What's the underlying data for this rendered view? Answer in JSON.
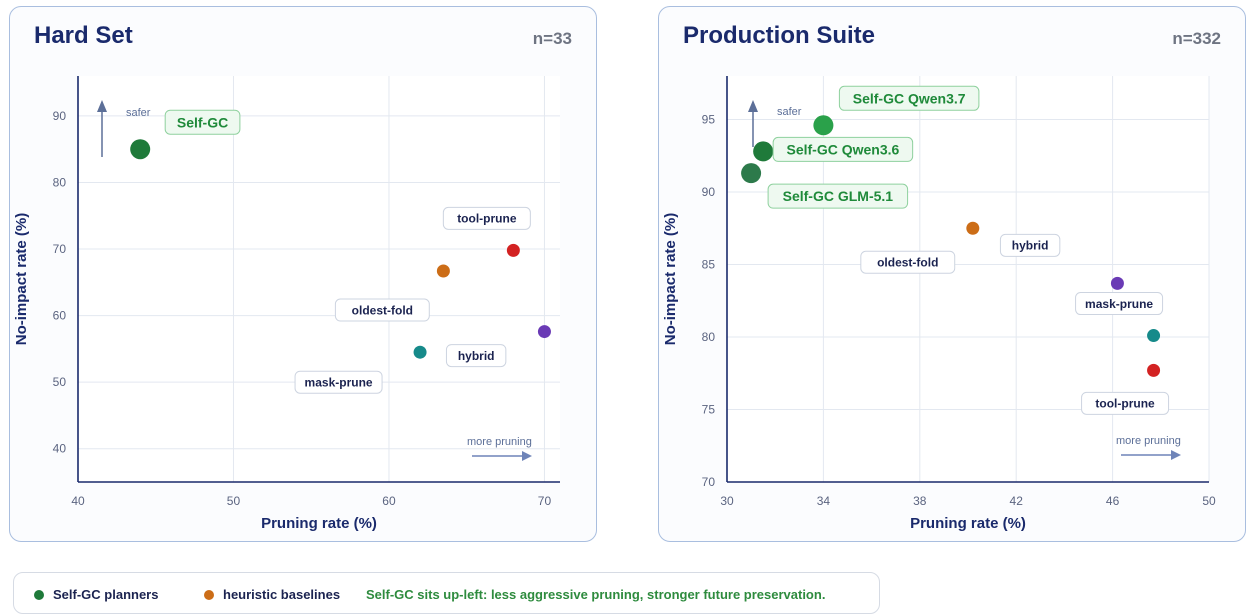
{
  "panels": [
    {
      "title": "Hard Set",
      "n_label": "n=33"
    },
    {
      "title": "Production Suite",
      "n_label": "n=332"
    }
  ],
  "legend": {
    "items": [
      {
        "label": "Self-GC planners",
        "color": "#1f7a3a"
      },
      {
        "label": "heuristic baselines",
        "color": "#cc6d17"
      }
    ],
    "note": "Self-GC sits up-left: less aggressive pruning, stronger future preservation."
  },
  "chart_data": [
    {
      "type": "scatter",
      "title": "Hard Set",
      "xlabel": "Pruning rate (%)",
      "ylabel": "No-impact rate (%)",
      "xlim": [
        40,
        71
      ],
      "ylim": [
        35,
        96
      ],
      "xticks": [
        40,
        50,
        60,
        70
      ],
      "yticks": [
        40,
        50,
        60,
        70,
        80,
        90
      ],
      "grid": true,
      "annotations": {
        "up": "safer",
        "right": "more pruning"
      },
      "points": [
        {
          "label": "Self-GC",
          "x": 44.0,
          "y": 85.0,
          "color": "#1f7a3a",
          "group": "Self-GC planners"
        },
        {
          "label": "tool-prune",
          "x": 68.0,
          "y": 69.8,
          "color": "#d32222",
          "group": "heuristic baselines"
        },
        {
          "label": "oldest-fold",
          "x": 63.5,
          "y": 66.7,
          "color": "#cc6d17",
          "group": "heuristic baselines"
        },
        {
          "label": "hybrid",
          "x": 70.0,
          "y": 57.6,
          "color": "#6a3ab5",
          "group": "heuristic baselines"
        },
        {
          "label": "mask-prune",
          "x": 62.0,
          "y": 54.5,
          "color": "#168a8a",
          "group": "heuristic baselines"
        }
      ]
    },
    {
      "type": "scatter",
      "title": "Production Suite",
      "xlabel": "Pruning rate (%)",
      "ylabel": "No-impact rate (%)",
      "xlim": [
        30,
        50
      ],
      "ylim": [
        70,
        98
      ],
      "xticks": [
        30,
        34,
        38,
        42,
        46,
        50
      ],
      "yticks": [
        70,
        75,
        80,
        85,
        90,
        95
      ],
      "grid": true,
      "annotations": {
        "up": "safer",
        "right": "more pruning"
      },
      "points": [
        {
          "label": "Self-GC Qwen3.7",
          "x": 34.0,
          "y": 94.6,
          "color": "#2aa14a",
          "group": "Self-GC planners"
        },
        {
          "label": "Self-GC Qwen3.6",
          "x": 31.5,
          "y": 92.8,
          "color": "#1f7a3a",
          "group": "Self-GC planners"
        },
        {
          "label": "Self-GC GLM-5.1",
          "x": 31.0,
          "y": 91.3,
          "color": "#2d7a4b",
          "group": "Self-GC planners"
        },
        {
          "label": "oldest-fold",
          "x": 40.2,
          "y": 87.5,
          "color": "#cc6d17",
          "group": "heuristic baselines"
        },
        {
          "label": "hybrid",
          "x": 46.2,
          "y": 83.7,
          "color": "#6a3ab5",
          "group": "heuristic baselines"
        },
        {
          "label": "mask-prune",
          "x": 47.7,
          "y": 80.1,
          "color": "#168a8a",
          "group": "heuristic baselines"
        },
        {
          "label": "tool-prune",
          "x": 47.7,
          "y": 77.7,
          "color": "#d32222",
          "group": "heuristic baselines"
        }
      ]
    }
  ]
}
